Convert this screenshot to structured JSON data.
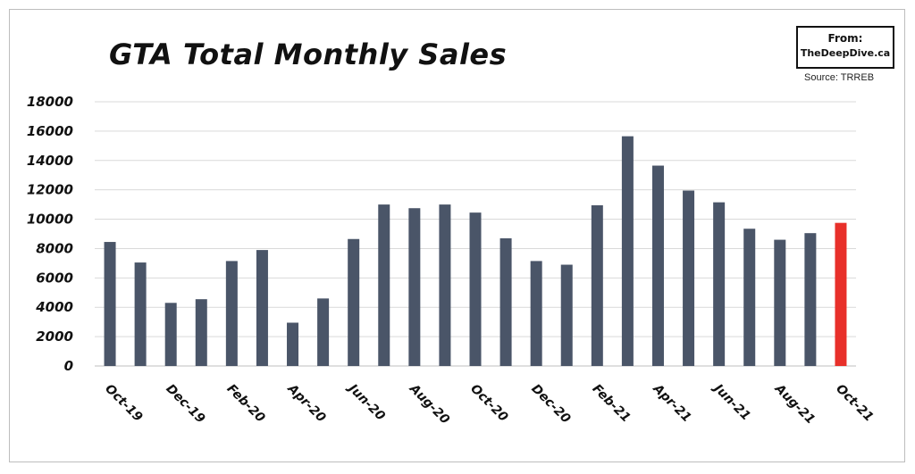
{
  "header": {
    "title": "GTA Total Monthly Sales",
    "badge_line1": "From:",
    "badge_line2": "TheDeepDive.ca",
    "source": "Source: TRREB"
  },
  "chart_data": {
    "type": "bar",
    "title": "GTA Total Monthly Sales",
    "xlabel": "",
    "ylabel": "",
    "ylim": [
      0,
      18000
    ],
    "yticks": [
      0,
      2000,
      4000,
      6000,
      8000,
      10000,
      12000,
      14000,
      16000,
      18000
    ],
    "grid": true,
    "categories": [
      "Oct-19",
      "Nov-19",
      "Dec-19",
      "Jan-20",
      "Feb-20",
      "Mar-20",
      "Apr-20",
      "May-20",
      "Jun-20",
      "Jul-20",
      "Aug-20",
      "Sep-20",
      "Oct-20",
      "Nov-20",
      "Dec-20",
      "Jan-21",
      "Feb-21",
      "Mar-21",
      "Apr-21",
      "May-21",
      "Jun-21",
      "Jul-21",
      "Aug-21",
      "Sep-21",
      "Oct-21"
    ],
    "x_tick_labels": [
      "Oct-19",
      "Dec-19",
      "Feb-20",
      "Apr-20",
      "Jun-20",
      "Aug-20",
      "Oct-20",
      "Dec-20",
      "Feb-21",
      "Apr-21",
      "Jun-21",
      "Aug-21",
      "Oct-21"
    ],
    "values": [
      8450,
      7050,
      4300,
      4550,
      7150,
      7900,
      2950,
      4600,
      8650,
      11000,
      10750,
      11000,
      10450,
      8700,
      7150,
      6900,
      10950,
      15650,
      13650,
      11950,
      11150,
      9350,
      8600,
      9050,
      9750
    ],
    "colors": {
      "bar": "#4a5568",
      "highlight": "#e8302a",
      "grid": "#d9d9d9",
      "axis": "#bfbfbf"
    },
    "highlight_index": 24
  }
}
